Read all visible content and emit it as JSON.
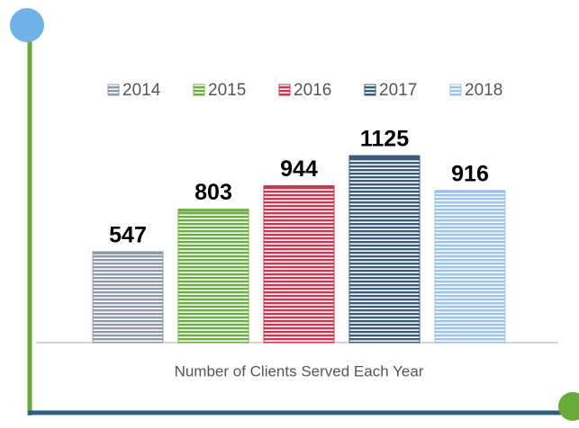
{
  "chart_data": {
    "type": "bar",
    "categories": [
      "Number of Clients Served Each Year"
    ],
    "series": [
      {
        "name": "2014",
        "color": "#8e9aa8",
        "values": [
          547
        ]
      },
      {
        "name": "2015",
        "color": "#70ad47",
        "values": [
          803
        ]
      },
      {
        "name": "2016",
        "color": "#c23a52",
        "values": [
          944
        ]
      },
      {
        "name": "2017",
        "color": "#3d5a7a",
        "values": [
          1125
        ]
      },
      {
        "name": "2018",
        "color": "#9ec3e6",
        "values": [
          916
        ]
      }
    ],
    "ylim": [
      0,
      1250
    ],
    "legend": "top"
  }
}
